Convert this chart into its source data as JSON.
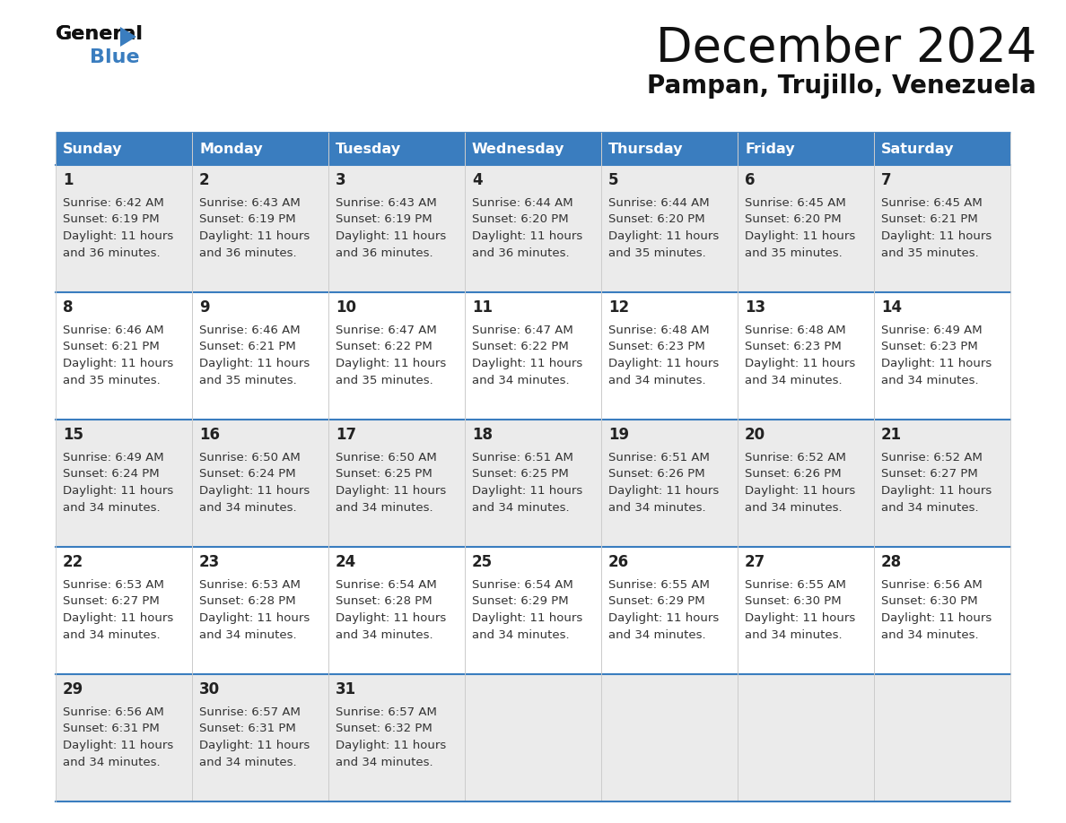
{
  "title": "December 2024",
  "subtitle": "Pampan, Trujillo, Venezuela",
  "header_bg": "#3a7dbf",
  "header_text": "#ffffff",
  "weekdays": [
    "Sunday",
    "Monday",
    "Tuesday",
    "Wednesday",
    "Thursday",
    "Friday",
    "Saturday"
  ],
  "row_bg_odd": "#ebebeb",
  "row_bg_even": "#ffffff",
  "border_color": "#3a7dbf",
  "day_number_color": "#222222",
  "cell_text_color": "#333333",
  "calendar": [
    [
      {
        "day": 1,
        "sunrise": "6:42 AM",
        "sunset": "6:19 PM",
        "daylight_h": "11 hours",
        "daylight_m": "and 36 minutes."
      },
      {
        "day": 2,
        "sunrise": "6:43 AM",
        "sunset": "6:19 PM",
        "daylight_h": "11 hours",
        "daylight_m": "and 36 minutes."
      },
      {
        "day": 3,
        "sunrise": "6:43 AM",
        "sunset": "6:19 PM",
        "daylight_h": "11 hours",
        "daylight_m": "and 36 minutes."
      },
      {
        "day": 4,
        "sunrise": "6:44 AM",
        "sunset": "6:20 PM",
        "daylight_h": "11 hours",
        "daylight_m": "and 36 minutes."
      },
      {
        "day": 5,
        "sunrise": "6:44 AM",
        "sunset": "6:20 PM",
        "daylight_h": "11 hours",
        "daylight_m": "and 35 minutes."
      },
      {
        "day": 6,
        "sunrise": "6:45 AM",
        "sunset": "6:20 PM",
        "daylight_h": "11 hours",
        "daylight_m": "and 35 minutes."
      },
      {
        "day": 7,
        "sunrise": "6:45 AM",
        "sunset": "6:21 PM",
        "daylight_h": "11 hours",
        "daylight_m": "and 35 minutes."
      }
    ],
    [
      {
        "day": 8,
        "sunrise": "6:46 AM",
        "sunset": "6:21 PM",
        "daylight_h": "11 hours",
        "daylight_m": "and 35 minutes."
      },
      {
        "day": 9,
        "sunrise": "6:46 AM",
        "sunset": "6:21 PM",
        "daylight_h": "11 hours",
        "daylight_m": "and 35 minutes."
      },
      {
        "day": 10,
        "sunrise": "6:47 AM",
        "sunset": "6:22 PM",
        "daylight_h": "11 hours",
        "daylight_m": "and 35 minutes."
      },
      {
        "day": 11,
        "sunrise": "6:47 AM",
        "sunset": "6:22 PM",
        "daylight_h": "11 hours",
        "daylight_m": "and 34 minutes."
      },
      {
        "day": 12,
        "sunrise": "6:48 AM",
        "sunset": "6:23 PM",
        "daylight_h": "11 hours",
        "daylight_m": "and 34 minutes."
      },
      {
        "day": 13,
        "sunrise": "6:48 AM",
        "sunset": "6:23 PM",
        "daylight_h": "11 hours",
        "daylight_m": "and 34 minutes."
      },
      {
        "day": 14,
        "sunrise": "6:49 AM",
        "sunset": "6:23 PM",
        "daylight_h": "11 hours",
        "daylight_m": "and 34 minutes."
      }
    ],
    [
      {
        "day": 15,
        "sunrise": "6:49 AM",
        "sunset": "6:24 PM",
        "daylight_h": "11 hours",
        "daylight_m": "and 34 minutes."
      },
      {
        "day": 16,
        "sunrise": "6:50 AM",
        "sunset": "6:24 PM",
        "daylight_h": "11 hours",
        "daylight_m": "and 34 minutes."
      },
      {
        "day": 17,
        "sunrise": "6:50 AM",
        "sunset": "6:25 PM",
        "daylight_h": "11 hours",
        "daylight_m": "and 34 minutes."
      },
      {
        "day": 18,
        "sunrise": "6:51 AM",
        "sunset": "6:25 PM",
        "daylight_h": "11 hours",
        "daylight_m": "and 34 minutes."
      },
      {
        "day": 19,
        "sunrise": "6:51 AM",
        "sunset": "6:26 PM",
        "daylight_h": "11 hours",
        "daylight_m": "and 34 minutes."
      },
      {
        "day": 20,
        "sunrise": "6:52 AM",
        "sunset": "6:26 PM",
        "daylight_h": "11 hours",
        "daylight_m": "and 34 minutes."
      },
      {
        "day": 21,
        "sunrise": "6:52 AM",
        "sunset": "6:27 PM",
        "daylight_h": "11 hours",
        "daylight_m": "and 34 minutes."
      }
    ],
    [
      {
        "day": 22,
        "sunrise": "6:53 AM",
        "sunset": "6:27 PM",
        "daylight_h": "11 hours",
        "daylight_m": "and 34 minutes."
      },
      {
        "day": 23,
        "sunrise": "6:53 AM",
        "sunset": "6:28 PM",
        "daylight_h": "11 hours",
        "daylight_m": "and 34 minutes."
      },
      {
        "day": 24,
        "sunrise": "6:54 AM",
        "sunset": "6:28 PM",
        "daylight_h": "11 hours",
        "daylight_m": "and 34 minutes."
      },
      {
        "day": 25,
        "sunrise": "6:54 AM",
        "sunset": "6:29 PM",
        "daylight_h": "11 hours",
        "daylight_m": "and 34 minutes."
      },
      {
        "day": 26,
        "sunrise": "6:55 AM",
        "sunset": "6:29 PM",
        "daylight_h": "11 hours",
        "daylight_m": "and 34 minutes."
      },
      {
        "day": 27,
        "sunrise": "6:55 AM",
        "sunset": "6:30 PM",
        "daylight_h": "11 hours",
        "daylight_m": "and 34 minutes."
      },
      {
        "day": 28,
        "sunrise": "6:56 AM",
        "sunset": "6:30 PM",
        "daylight_h": "11 hours",
        "daylight_m": "and 34 minutes."
      }
    ],
    [
      {
        "day": 29,
        "sunrise": "6:56 AM",
        "sunset": "6:31 PM",
        "daylight_h": "11 hours",
        "daylight_m": "and 34 minutes."
      },
      {
        "day": 30,
        "sunrise": "6:57 AM",
        "sunset": "6:31 PM",
        "daylight_h": "11 hours",
        "daylight_m": "and 34 minutes."
      },
      {
        "day": 31,
        "sunrise": "6:57 AM",
        "sunset": "6:32 PM",
        "daylight_h": "11 hours",
        "daylight_m": "and 34 minutes."
      },
      null,
      null,
      null,
      null
    ]
  ]
}
